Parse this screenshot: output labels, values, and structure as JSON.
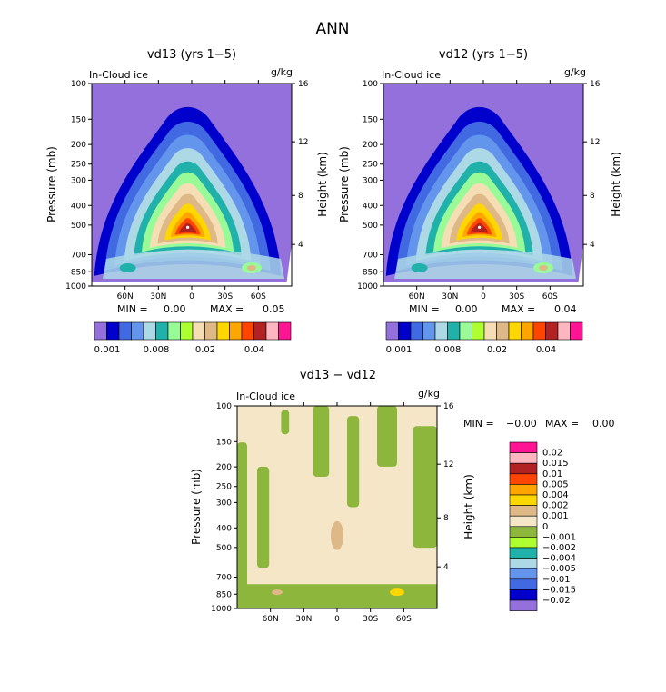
{
  "page_title": "ANN",
  "colors": {
    "background": "#9370db",
    "contour_scale": [
      "#9370db",
      "#0000cd",
      "#4169e1",
      "#6495ed",
      "#add8e6",
      "#20b2aa",
      "#98fb98",
      "#adff2f",
      "#f5deb3",
      "#deb887",
      "#ffd700",
      "#ffa500",
      "#ff4500",
      "#b22222",
      "#ffb6c1",
      "#ff1493"
    ],
    "diff_scale": [
      "#9370db",
      "#0000cd",
      "#4169e1",
      "#6495ed",
      "#add8e6",
      "#20b2aa",
      "#adff2f",
      "#8db63c",
      "#f5e6c8",
      "#deb887",
      "#ffd700",
      "#ffa500",
      "#ff4500",
      "#b22222",
      "#ffb6c1",
      "#ff1493"
    ]
  },
  "chart_data": [
    {
      "type": "heatmap",
      "title": "vd13 (yrs 1−5)",
      "field_label": "In-Cloud ice",
      "units": "g/kg",
      "ylabel": "Pressure (mb)",
      "right_label": "Height (km)",
      "x_ticks": [
        "60N",
        "30N",
        "0",
        "30S",
        "60S"
      ],
      "y_ticks": [
        "100",
        "150",
        "200",
        "250",
        "300",
        "400",
        "500",
        "700",
        "850",
        "1000"
      ],
      "right_ticks": [
        "16",
        "12",
        "8",
        "4"
      ],
      "min_label": "MIN =",
      "min_value": "0.00",
      "max_label": "MAX =",
      "max_value": "0.05",
      "colorbar_labels": [
        "0.001",
        "0.008",
        "0.02",
        "0.04"
      ],
      "peak_value": 0.05
    },
    {
      "type": "heatmap",
      "title": "vd12 (yrs 1−5)",
      "field_label": "In-Cloud ice",
      "units": "g/kg",
      "ylabel": "Pressure (mb)",
      "right_label": "Height (km)",
      "x_ticks": [
        "60N",
        "30N",
        "0",
        "30S",
        "60S"
      ],
      "y_ticks": [
        "100",
        "150",
        "200",
        "250",
        "300",
        "400",
        "500",
        "700",
        "850",
        "1000"
      ],
      "right_ticks": [
        "16",
        "12",
        "8",
        "4"
      ],
      "min_label": "MIN =",
      "min_value": "0.00",
      "max_label": "MAX =",
      "max_value": "0.04",
      "colorbar_labels": [
        "0.001",
        "0.008",
        "0.02",
        "0.04"
      ],
      "peak_value": 0.04
    },
    {
      "type": "heatmap",
      "title": "vd13 − vd12",
      "field_label": "In-Cloud ice",
      "units": "g/kg",
      "ylabel": "Pressure (mb)",
      "right_label": "Height (km)",
      "x_ticks": [
        "60N",
        "30N",
        "0",
        "30S",
        "60S"
      ],
      "y_ticks": [
        "100",
        "150",
        "200",
        "250",
        "300",
        "400",
        "500",
        "700",
        "850",
        "1000"
      ],
      "right_ticks": [
        "16",
        "12",
        "8",
        "4"
      ],
      "min_label": "MIN =",
      "min_value": "−0.00",
      "max_label": "MAX =",
      "max_value": "0.00",
      "colorbar_labels": [
        "0.02",
        "0.015",
        "0.01",
        "0.005",
        "0.004",
        "0.002",
        "0.001",
        "0",
        "−0.001",
        "−0.002",
        "−0.004",
        "−0.005",
        "−0.01",
        "−0.015",
        "−0.02"
      ]
    }
  ]
}
